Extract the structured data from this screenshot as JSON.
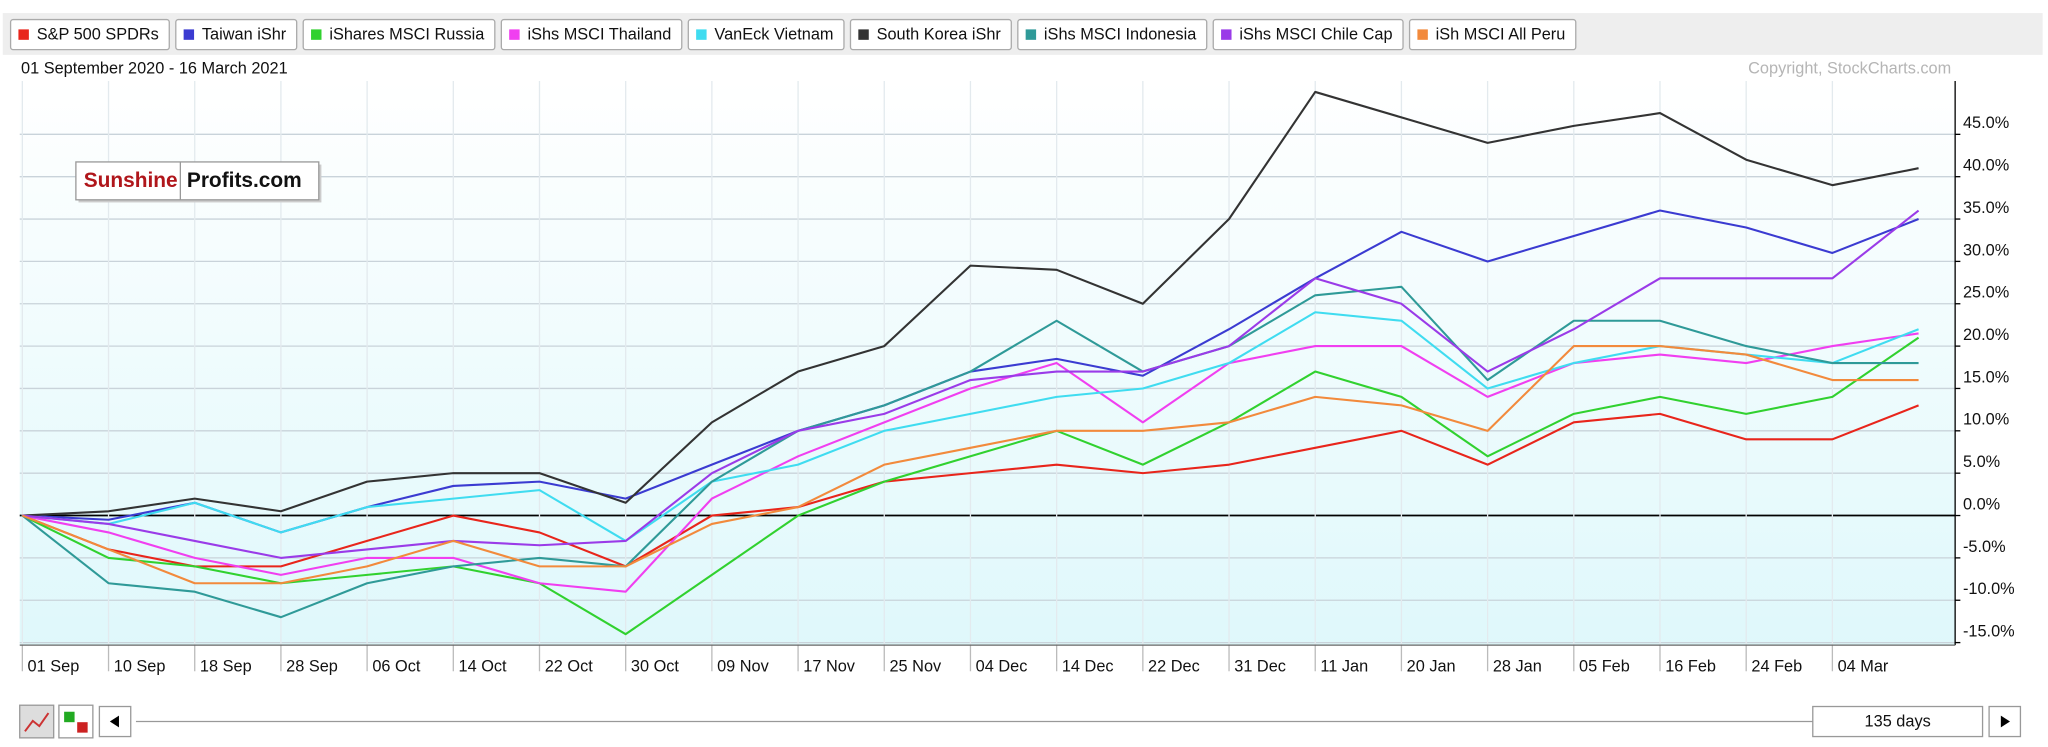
{
  "chart_data": {
    "type": "line",
    "subtitle": "01 September 2020 - 16 March 2021",
    "copyright": "Copyright, StockCharts.com",
    "categories": [
      "01 Sep",
      "10 Sep",
      "18 Sep",
      "28 Sep",
      "06 Oct",
      "14 Oct",
      "22 Oct",
      "30 Oct",
      "09 Nov",
      "17 Nov",
      "25 Nov",
      "04 Dec",
      "14 Dec",
      "22 Dec",
      "31 Dec",
      "11 Jan",
      "20 Jan",
      "28 Jan",
      "05 Feb",
      "16 Feb",
      "24 Feb",
      "04 Mar",
      null
    ],
    "ylim": [
      -15.3,
      51.3
    ],
    "yticks": [
      {
        "value": -15,
        "label": "-15.0%"
      },
      {
        "value": -10,
        "label": "-10.0%"
      },
      {
        "value": -5,
        "label": "-5.0%"
      },
      {
        "value": 0,
        "label": "0.0%"
      },
      {
        "value": 5,
        "label": "5.0%"
      },
      {
        "value": 10,
        "label": "10.0%"
      },
      {
        "value": 15,
        "label": "15.0%"
      },
      {
        "value": 20,
        "label": "20.0%"
      },
      {
        "value": 25,
        "label": "25.0%"
      },
      {
        "value": 30,
        "label": "30.0%"
      },
      {
        "value": 35,
        "label": "35.0%"
      },
      {
        "value": 40,
        "label": "40.0%"
      },
      {
        "value": 45,
        "label": "45.0%"
      }
    ],
    "grid": true,
    "series": [
      {
        "name": "S&P 500 SPDRs",
        "color": "#e8251b",
        "values": [
          0,
          -4,
          -6,
          -6,
          -3,
          0,
          -2,
          -6,
          0,
          1,
          4,
          5,
          6,
          5,
          6,
          8,
          10,
          6,
          11,
          12,
          9,
          9,
          13
        ]
      },
      {
        "name": "Taiwan iShr",
        "color": "#3b3bd1",
        "values": [
          0,
          -0.5,
          1.5,
          -2,
          1,
          3.5,
          4,
          2,
          6,
          10,
          13,
          17,
          18.5,
          16.5,
          22,
          28,
          33.5,
          30,
          33,
          36,
          34,
          31,
          35
        ]
      },
      {
        "name": "iShares MSCI Russia",
        "color": "#31d12f",
        "values": [
          0,
          -5,
          -6,
          -8,
          -7,
          -6,
          -8,
          -14,
          -7,
          0,
          4,
          7,
          10,
          6,
          11,
          17,
          14,
          7,
          12,
          14,
          12,
          14,
          21
        ]
      },
      {
        "name": "iShs MSCI Thailand",
        "color": "#f03ff0",
        "values": [
          0,
          -2,
          -5,
          -7,
          -5,
          -5,
          -8,
          -9,
          2,
          7,
          11,
          15,
          18,
          11,
          18,
          20,
          20,
          14,
          18,
          19,
          18,
          20,
          21.5
        ]
      },
      {
        "name": "VanEck Vietnam",
        "color": "#3fdcf0",
        "values": [
          0,
          -1,
          1.5,
          -2,
          1,
          2,
          3,
          -3,
          4,
          6,
          10,
          12,
          14,
          15,
          18,
          24,
          23,
          15,
          18,
          20,
          19,
          18,
          22
        ]
      },
      {
        "name": "South Korea iShr",
        "color": "#333333",
        "values": [
          0,
          0.5,
          2,
          0.5,
          4,
          5,
          5,
          1.5,
          11,
          17,
          20,
          29.5,
          29,
          25,
          35,
          50,
          47,
          44,
          46,
          47.5,
          42,
          39,
          41
        ]
      },
      {
        "name": "iShs MSCI Indonesia",
        "color": "#2f9a98",
        "values": [
          0,
          -8,
          -9,
          -12,
          -8,
          -6,
          -5,
          -6,
          4,
          10,
          13,
          17,
          23,
          17,
          20,
          26,
          27,
          16,
          23,
          23,
          20,
          18,
          18
        ]
      },
      {
        "name": "iShs MSCI Chile Cap",
        "color": "#9a3be8",
        "values": [
          0,
          -1,
          -3,
          -5,
          -4,
          -3,
          -3.5,
          -3,
          5,
          10,
          12,
          16,
          17,
          17,
          20,
          28,
          25,
          17,
          22,
          28,
          28,
          28,
          36
        ]
      },
      {
        "name": "iSh MSCI All Peru",
        "color": "#f28a3c",
        "values": [
          0,
          -4,
          -8,
          -8,
          -6,
          -3,
          -6,
          -6,
          -1,
          1,
          6,
          8,
          10,
          10,
          11,
          14,
          13,
          10,
          20,
          20,
          19,
          16,
          16
        ]
      }
    ]
  },
  "logo": {
    "part1": "Sunshine",
    "part2": "Profits.com"
  },
  "controls": {
    "range": "135 days"
  }
}
